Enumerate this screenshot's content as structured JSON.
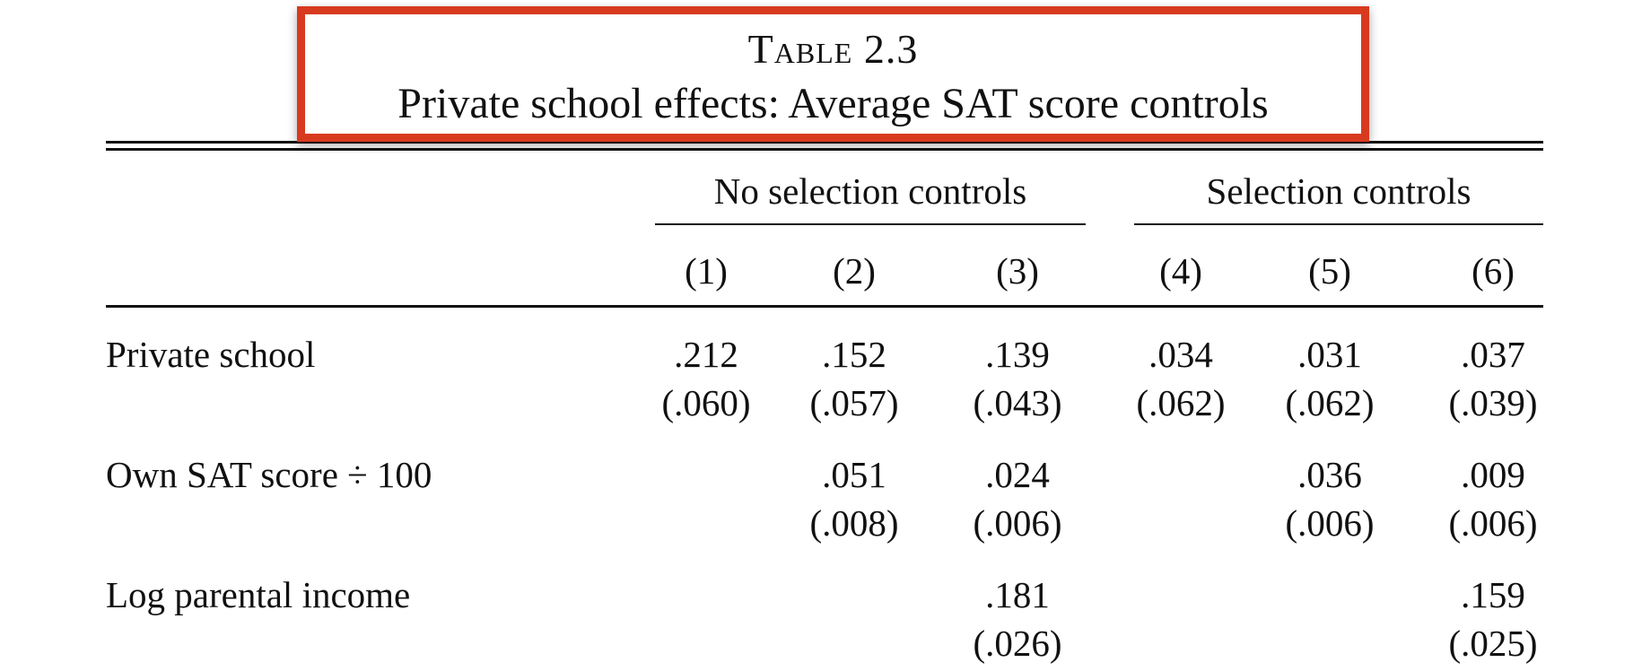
{
  "table": {
    "number_label": "Table 2.3",
    "title": "Private school effects: Average SAT score controls",
    "group_headers": [
      "No selection controls",
      "Selection controls"
    ],
    "column_headers": [
      "(1)",
      "(2)",
      "(3)",
      "(4)",
      "(5)",
      "(6)"
    ],
    "rows": [
      {
        "label": "Private school",
        "estimates": [
          ".212",
          ".152",
          ".139",
          ".034",
          ".031",
          ".037"
        ],
        "std_errors": [
          "(.060)",
          "(.057)",
          "(.043)",
          "(.062)",
          "(.062)",
          "(.039)"
        ]
      },
      {
        "label": "Own SAT score ÷ 100",
        "estimates": [
          "",
          ".051",
          ".024",
          "",
          ".036",
          ".009"
        ],
        "std_errors": [
          "",
          "(.008)",
          "(.006)",
          "",
          "(.006)",
          "(.006)"
        ]
      },
      {
        "label": "Log parental income",
        "estimates": [
          "",
          "",
          ".181",
          "",
          "",
          ".159"
        ],
        "std_errors": [
          "",
          "",
          "(.026)",
          "",
          "",
          "(.025)"
        ]
      }
    ]
  },
  "colors": {
    "highlight_box": "#d83a1f",
    "text": "#111111"
  }
}
